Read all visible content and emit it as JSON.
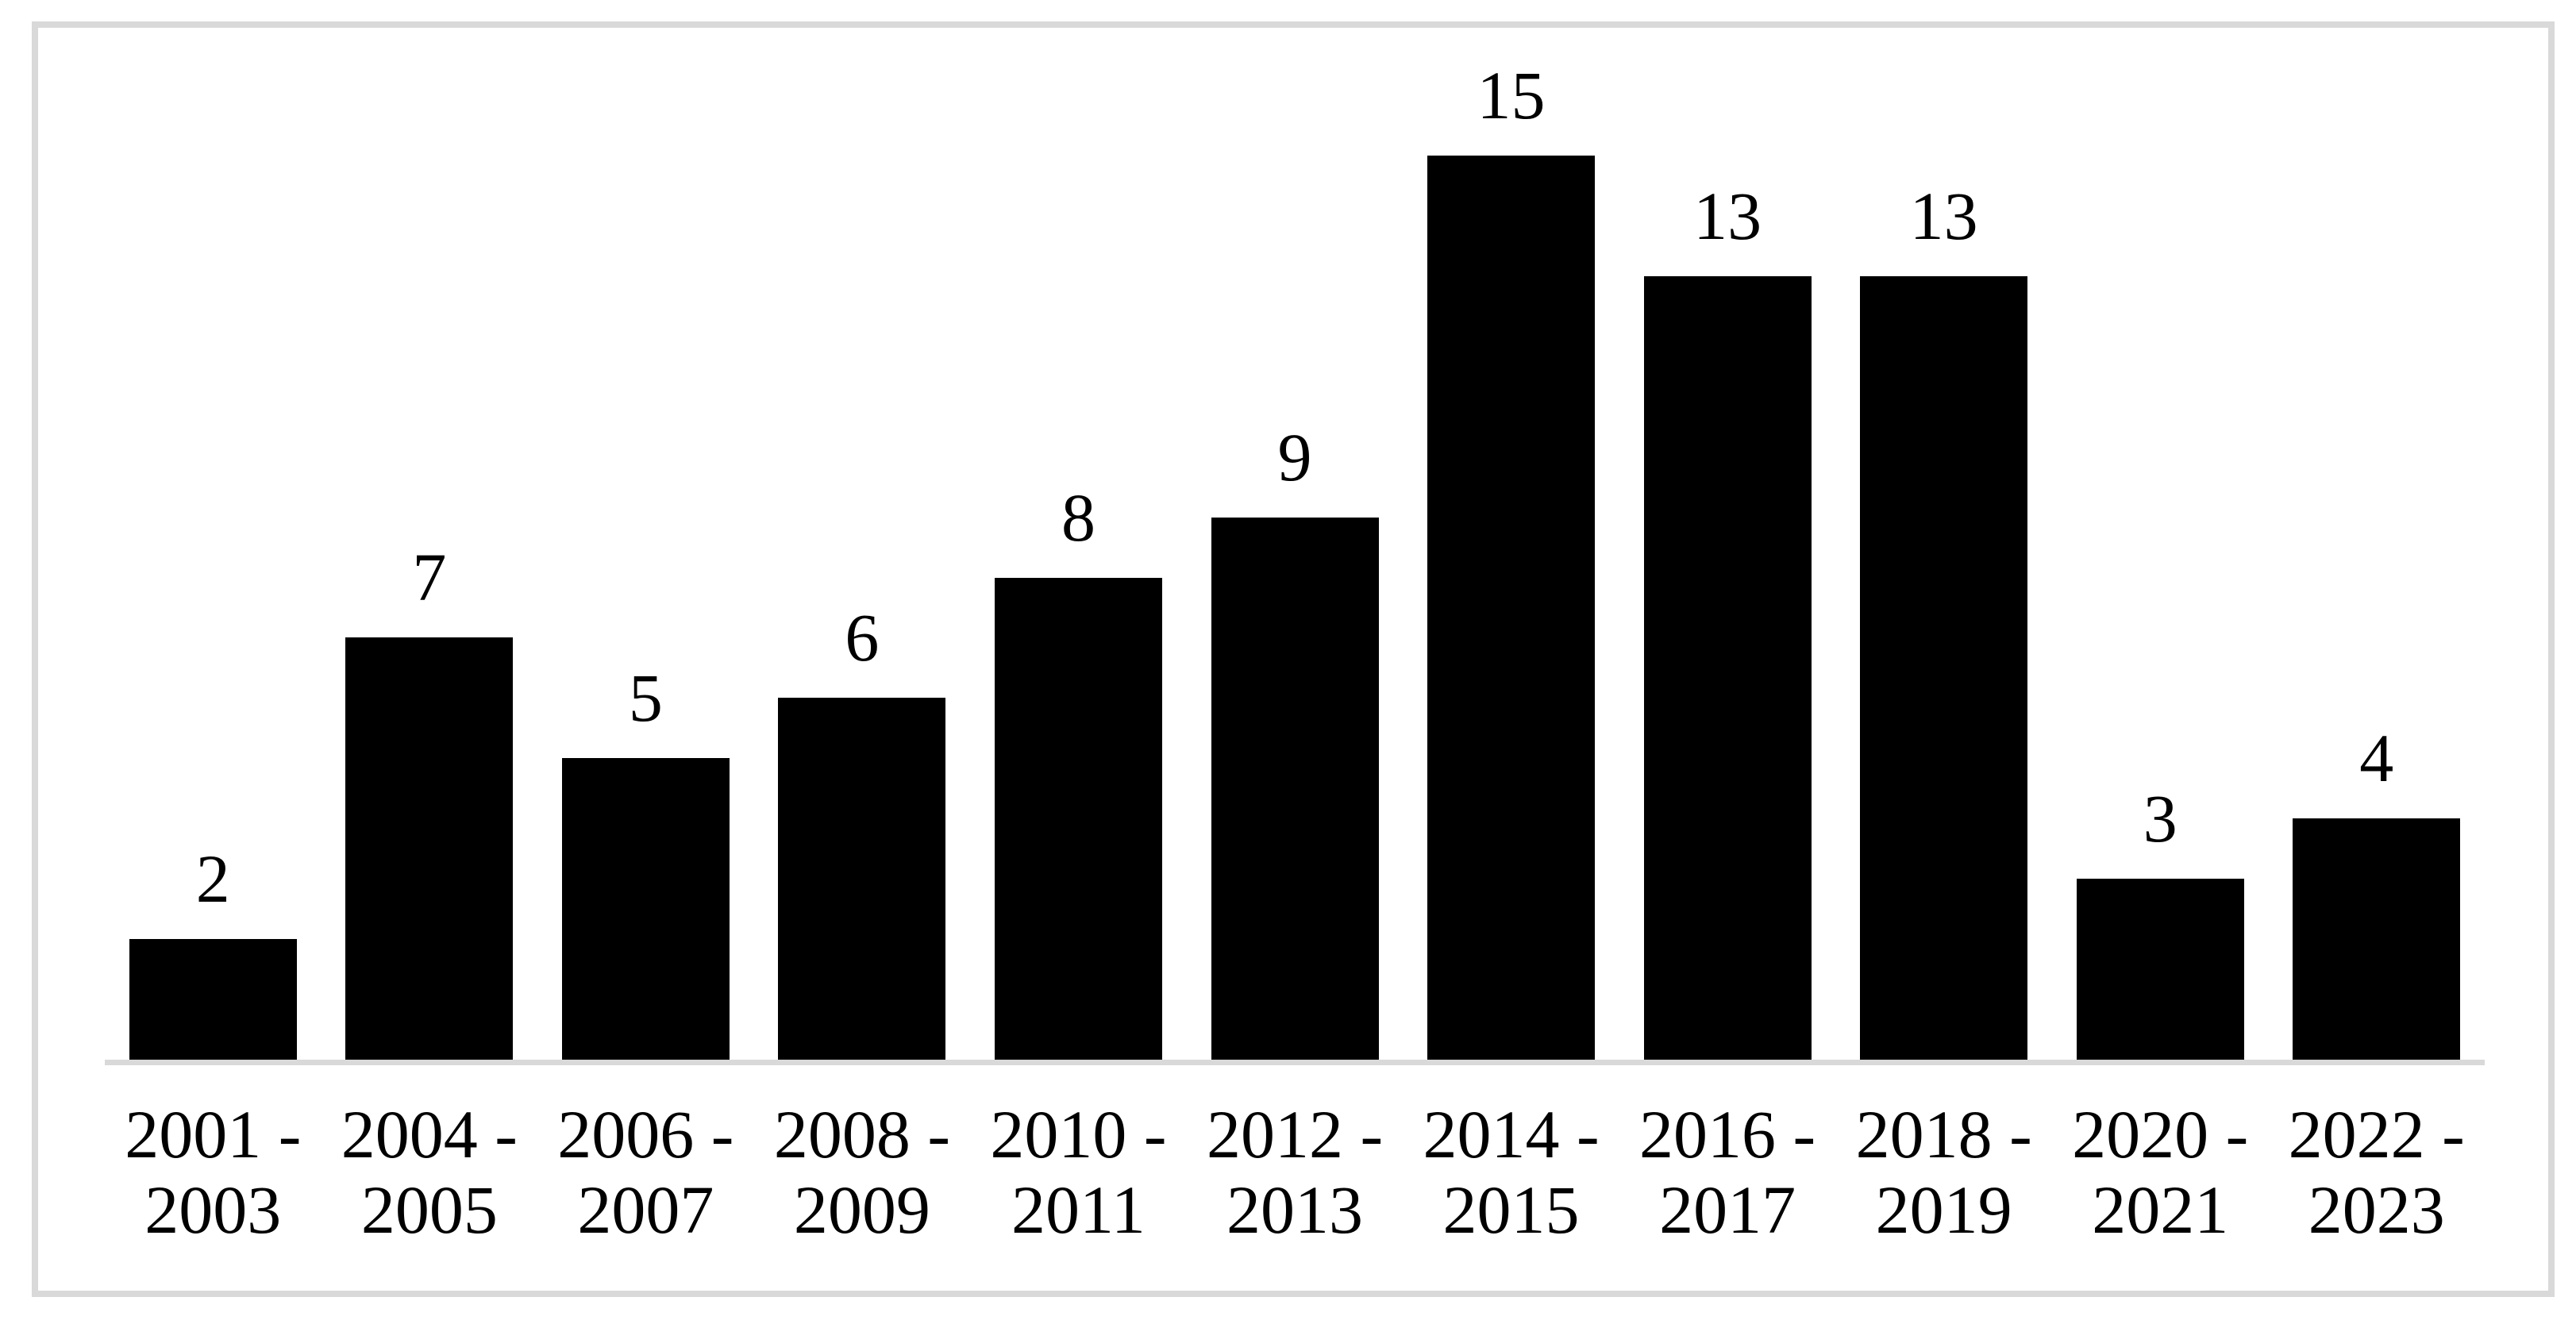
{
  "chart_data": {
    "type": "bar",
    "title": "",
    "xlabel": "",
    "ylabel": "",
    "categories": [
      "2001 - 2003",
      "2004 - 2005",
      "2006 - 2007",
      "2008 - 2009",
      "2010 - 2011",
      "2012 - 2013",
      "2014 - 2015",
      "2016 - 2017",
      "2018 - 2019",
      "2020 - 2021",
      "2022 - 2023"
    ],
    "tick_label_lines": [
      [
        "2001 -",
        "2003"
      ],
      [
        "2004 -",
        "2005"
      ],
      [
        "2006 -",
        "2007"
      ],
      [
        "2008 -",
        "2009"
      ],
      [
        "2010 -",
        "2011"
      ],
      [
        "2012 -",
        "2013"
      ],
      [
        "2014 -",
        "2015"
      ],
      [
        "2016 -",
        "2017"
      ],
      [
        "2018 -",
        "2019"
      ],
      [
        "2020 -",
        "2021"
      ],
      [
        "2022 -",
        "2023"
      ]
    ],
    "values": [
      2,
      7,
      5,
      6,
      8,
      9,
      15,
      13,
      13,
      3,
      4
    ],
    "data_labels": [
      "2",
      "7",
      "5",
      "6",
      "8",
      "9",
      "15",
      "13",
      "13",
      "3",
      "4"
    ],
    "ylim": [
      0,
      15
    ],
    "grid": false,
    "legend": false,
    "y_axis_visible": false,
    "bar_color": "#000000",
    "axis_line_color": "#d9d9d9",
    "frame_border_color": "#d9d9d9",
    "background_color": "#ffffff",
    "label_color": "#000000"
  }
}
